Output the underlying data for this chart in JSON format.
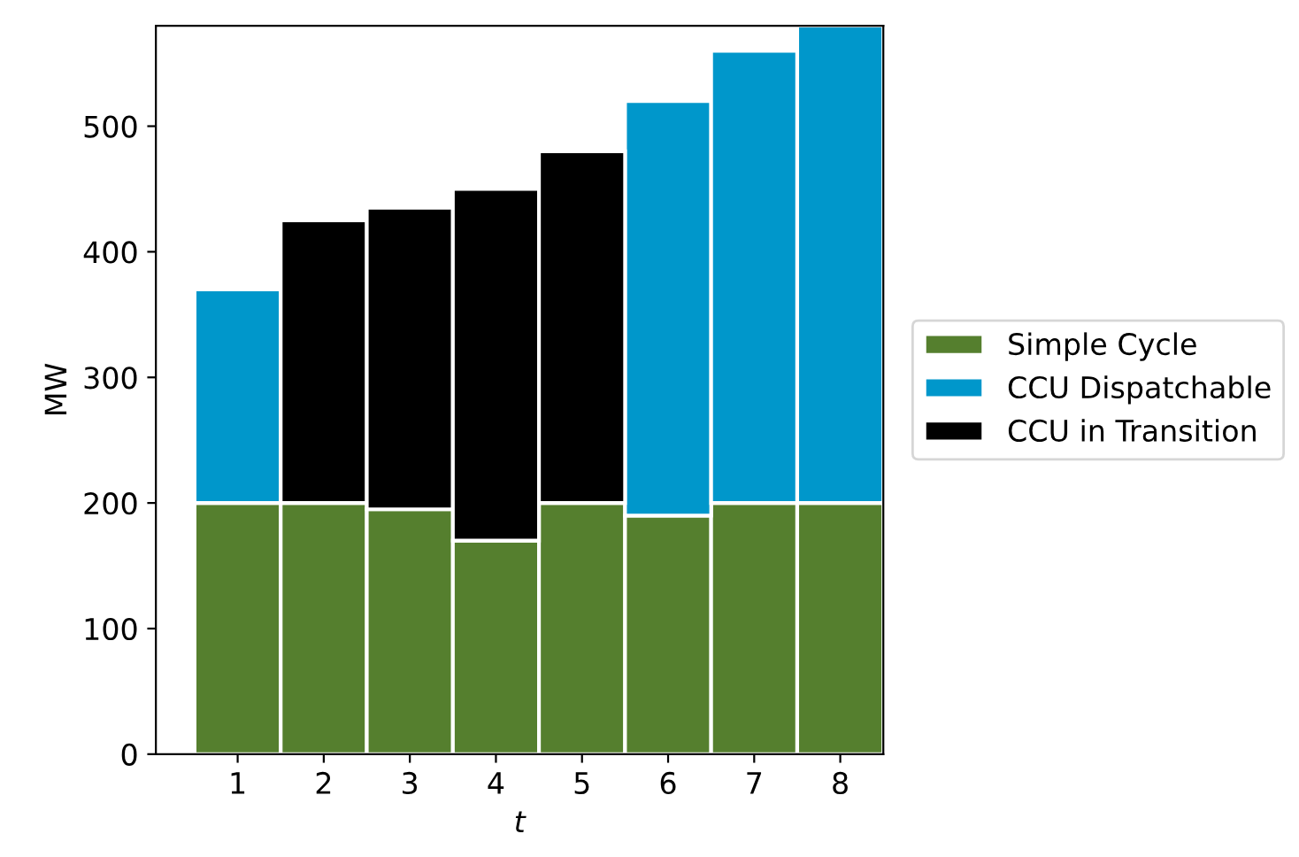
{
  "chart_data": {
    "type": "bar",
    "stacked": true,
    "xlabel": "t",
    "ylabel": "MW",
    "categories": [
      "1",
      "2",
      "3",
      "4",
      "5",
      "6",
      "7",
      "8"
    ],
    "series": [
      {
        "name": "Simple Cycle",
        "color": "#557f2e",
        "values": [
          200,
          200,
          195,
          170,
          200,
          190,
          200,
          200
        ]
      },
      {
        "name": "CCU Dispatchable",
        "color": "#0097cb",
        "values": [
          170,
          null,
          null,
          null,
          null,
          330,
          360,
          380
        ]
      },
      {
        "name": "CCU in Transition",
        "color": "#000000",
        "values": [
          null,
          225,
          240,
          280,
          280,
          null,
          null,
          null
        ]
      }
    ],
    "ylim": [
      0,
      580
    ],
    "yticks": [
      0,
      100,
      200,
      300,
      400,
      500
    ],
    "legend": "right",
    "grid": false
  }
}
